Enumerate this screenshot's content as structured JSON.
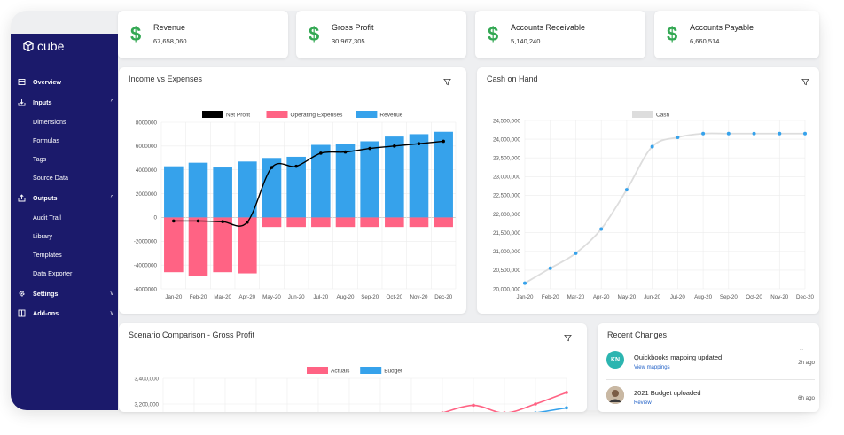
{
  "app": {
    "logo_text": "cube"
  },
  "sidebar": {
    "items": [
      {
        "label": "Overview",
        "icon": "overview-icon",
        "bold": true,
        "chevron": ""
      },
      {
        "label": "Inputs",
        "icon": "inputs-icon",
        "bold": true,
        "chevron": "^"
      },
      {
        "label": "Dimensions",
        "bold": false
      },
      {
        "label": "Formulas",
        "bold": false
      },
      {
        "label": "Tags",
        "bold": false
      },
      {
        "label": "Source Data",
        "bold": false
      },
      {
        "label": "Outputs",
        "icon": "outputs-icon",
        "bold": true,
        "chevron": "^"
      },
      {
        "label": "Audit Trail",
        "bold": false
      },
      {
        "label": "Library",
        "bold": false
      },
      {
        "label": "Templates",
        "bold": false
      },
      {
        "label": "Data Exporter",
        "bold": false
      },
      {
        "label": "Settings",
        "icon": "gear-icon",
        "bold": true,
        "chevron": "v"
      },
      {
        "label": "Add-ons",
        "icon": "addons-icon",
        "bold": true,
        "chevron": "v"
      }
    ]
  },
  "kpis": [
    {
      "title": "Revenue",
      "value": "67,658,060",
      "symbol": "$"
    },
    {
      "title": "Gross Profit",
      "value": "30,967,305",
      "symbol": "$"
    },
    {
      "title": "Accounts Receivable",
      "value": "5,140,240",
      "symbol": "$"
    },
    {
      "title": "Accounts Payable",
      "value": "6,660,514",
      "symbol": "$"
    }
  ],
  "income_card": {
    "title": "Income vs Expenses"
  },
  "cash_card": {
    "title": "Cash on Hand"
  },
  "scenario_card": {
    "title": "Scenario Comparison - Gross Profit"
  },
  "recent": {
    "title": "Recent Changes",
    "marker": "...",
    "items": [
      {
        "avatar": "KN",
        "text": "Quickbooks mapping updated",
        "action": "View mappings",
        "time": "2h ago",
        "color": "#2cb5b0"
      },
      {
        "avatar": "",
        "text": "2021 Budget uploaded",
        "action": "Review",
        "time": "6h ago",
        "color": "#8a7560"
      }
    ]
  },
  "colors": {
    "sidebar": "#1b1a6b",
    "positive": "#33a853",
    "red": "#ff6384",
    "blue": "#36a2eb",
    "link": "#1f5fc6"
  },
  "chart_data": [
    {
      "type": "bar",
      "title": "",
      "categories": [
        "Jan-20",
        "Feb-20",
        "Mar-20",
        "Apr-20",
        "May-20",
        "Jun-20",
        "Jul-20",
        "Aug-20",
        "Sep-20",
        "Oct-20",
        "Nov-20",
        "Dec-20"
      ],
      "series": [
        {
          "name": "Net Profit",
          "kind": "line",
          "color": "#000000",
          "values": [
            -300000,
            -300000,
            -350000,
            -400000,
            4200000,
            4300000,
            5400000,
            5500000,
            5800000,
            6000000,
            6200000,
            6400000
          ]
        },
        {
          "name": "Operating Expenses",
          "kind": "bar",
          "color": "#ff6384",
          "values": [
            -4600000,
            -4900000,
            -4600000,
            -4700000,
            -800000,
            -800000,
            -800000,
            -800000,
            -800000,
            -800000,
            -800000,
            -800000
          ]
        },
        {
          "name": "Revenue",
          "kind": "bar",
          "color": "#36a2eb",
          "values": [
            4300000,
            4600000,
            4200000,
            4700000,
            5000000,
            5100000,
            6100000,
            6200000,
            6400000,
            6800000,
            7000000,
            7200000
          ]
        }
      ],
      "yticks": [
        "8000000",
        "6000000",
        "4000000",
        "2000000",
        "0",
        "-2000000",
        "-4000000",
        "-6000000"
      ],
      "ylim": [
        -6000000,
        8000000
      ],
      "grid": true,
      "legend": "top"
    },
    {
      "type": "line",
      "title": "",
      "categories": [
        "Jan-20",
        "Feb-20",
        "Mar-20",
        "Apr-20",
        "May-20",
        "Jun-20",
        "Jul-20",
        "Aug-20",
        "Sep-20",
        "Oct-20",
        "Nov-20",
        "Dec-20"
      ],
      "series": [
        {
          "name": "Cash",
          "color": "#dddddd",
          "point_color": "#36a2eb",
          "values": [
            20150000,
            20550000,
            20950000,
            21600000,
            22650000,
            23800000,
            24050000,
            24150000,
            24150000,
            24150000,
            24150000,
            24150000
          ]
        }
      ],
      "yticks": [
        "24,500,000",
        "24,000,000",
        "23,500,000",
        "23,000,000",
        "22,500,000",
        "22,000,000",
        "21,500,000",
        "21,000,000",
        "20,500,000",
        "20,000,000"
      ],
      "ylim": [
        20000000,
        24500000
      ],
      "grid": true,
      "legend": "top"
    },
    {
      "type": "line",
      "title": "",
      "series": [
        {
          "name": "Actuals",
          "color": "#ff6384",
          "values": [
            null,
            null,
            null,
            null,
            null,
            null,
            null,
            null,
            null,
            3130000,
            3190000,
            3130000,
            3200000,
            3290000
          ]
        },
        {
          "name": "Budget",
          "color": "#36a2eb",
          "values": [
            null,
            null,
            null,
            null,
            null,
            null,
            null,
            null,
            null,
            null,
            null,
            null,
            3130000,
            3170000
          ]
        }
      ],
      "yticks": [
        "3,400,000",
        "3,200,000"
      ],
      "ylim": [
        3000000,
        3400000
      ],
      "grid": true,
      "legend": "top"
    }
  ]
}
